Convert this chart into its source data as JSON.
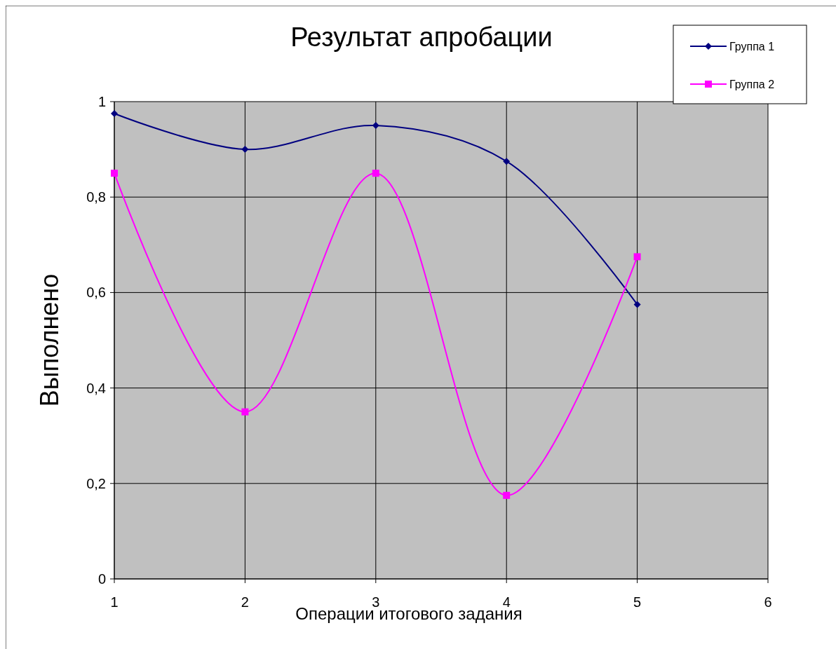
{
  "chart_data": {
    "type": "line",
    "title": "Результат апробации",
    "xlabel": "Операции итогового задания",
    "ylabel": "Выполнено",
    "x": [
      1,
      2,
      3,
      4,
      5
    ],
    "series": [
      {
        "name": "Группа 1",
        "color": "#000080",
        "marker": "diamond",
        "values": [
          0.975,
          0.9,
          0.95,
          0.875,
          0.575
        ]
      },
      {
        "name": "Группа 2",
        "color": "#ff00ff",
        "marker": "square",
        "values": [
          0.85,
          0.35,
          0.85,
          0.175,
          0.675
        ]
      }
    ],
    "xlim": [
      1,
      6
    ],
    "xticks": [
      1,
      2,
      3,
      4,
      5,
      6
    ],
    "ylim": [
      0,
      1
    ],
    "yticks": [
      0,
      {
        "value": 0.2,
        "label": "0,2"
      },
      {
        "value": 0.4,
        "label": "0,4"
      },
      {
        "value": 0.6,
        "label": "0,6"
      },
      {
        "value": 0.8,
        "label": "0,8"
      },
      1
    ],
    "grid": true,
    "legend": "top right",
    "line_style": "solid"
  }
}
